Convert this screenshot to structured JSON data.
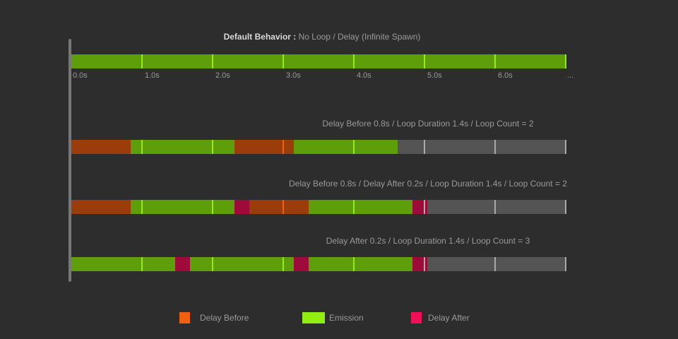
{
  "colors": {
    "background": "#2d2d2d",
    "delay_before": "#9a3d0a",
    "emission": "#5e9e0a",
    "delay_after": "#9e0a3a",
    "idle": "#545454",
    "tick_delay_before": "#f06010",
    "tick_emission": "#90ee10",
    "tick_idle": "#aaaaaa"
  },
  "default_row": {
    "title_bold": "Default Behavior :",
    "title_rest": "No Loop / Delay (Infinite Spawn)",
    "segments": [
      {
        "type": "emission",
        "duration": 7
      }
    ],
    "tick_labels": [
      "0.0s",
      "1.0s",
      "2.0s",
      "3.0s",
      "4.0s",
      "5.0s",
      "6.0s",
      "..."
    ]
  },
  "rows": [
    {
      "title": "Delay Before 0.8s / Loop Duration 1.4s / Loop Count = 2",
      "segments": [
        {
          "type": "delay_before",
          "duration": 0.8
        },
        {
          "type": "emission",
          "duration": 1.4
        },
        {
          "type": "delay_before",
          "duration": 0.8
        },
        {
          "type": "emission",
          "duration": 1.4
        }
      ]
    },
    {
      "title": "Delay Before 0.8s / Delay After 0.2s / Loop Duration 1.4s / Loop Count = 2",
      "segments": [
        {
          "type": "delay_before",
          "duration": 0.8
        },
        {
          "type": "emission",
          "duration": 1.4
        },
        {
          "type": "delay_after",
          "duration": 0.2
        },
        {
          "type": "delay_before",
          "duration": 0.8
        },
        {
          "type": "emission",
          "duration": 1.4
        },
        {
          "type": "delay_after",
          "duration": 0.2
        }
      ]
    },
    {
      "title": "Delay After 0.2s / Loop Duration 1.4s / Loop Count = 3",
      "segments": [
        {
          "type": "emission",
          "duration": 1.4
        },
        {
          "type": "delay_after",
          "duration": 0.2
        },
        {
          "type": "emission",
          "duration": 1.4
        },
        {
          "type": "delay_after",
          "duration": 0.2
        },
        {
          "type": "emission",
          "duration": 1.4
        },
        {
          "type": "delay_after",
          "duration": 0.2
        }
      ]
    }
  ],
  "legend": [
    {
      "label": "Delay Before",
      "color": "#f06010"
    },
    {
      "label": "Emission",
      "color": "#90ee10"
    },
    {
      "label": "Delay After",
      "color": "#f0105a"
    }
  ]
}
